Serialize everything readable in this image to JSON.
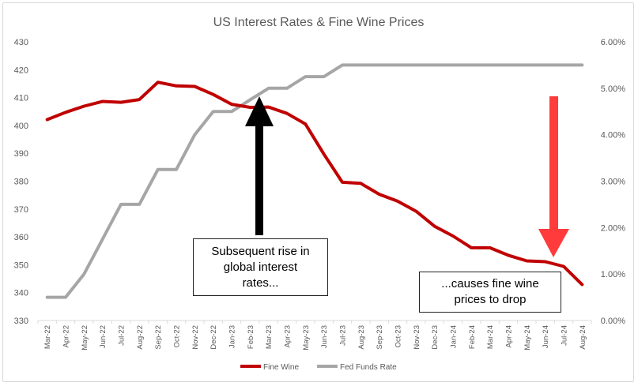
{
  "chart_data": {
    "type": "line",
    "title": "US Interest Rates & Fine Wine Prices",
    "categories": [
      "Mar-22",
      "Apr-22",
      "May-22",
      "Jun-22",
      "Jul-22",
      "Aug-22",
      "Sep-22",
      "Oct-22",
      "Nov-22",
      "Dec-22",
      "Jan-23",
      "Feb-23",
      "Mar-23",
      "Apr-23",
      "May-23",
      "Jun-23",
      "Jul-23",
      "Aug-23",
      "Sep-23",
      "Oct-23",
      "Nov-23",
      "Dec-23",
      "Jan-24",
      "Feb-24",
      "Mar-24",
      "Apr-24",
      "May-24",
      "Jun-24",
      "Jul-24",
      "Aug-24"
    ],
    "y_left": {
      "min": 330,
      "max": 430,
      "step": 10,
      "ticks": [
        "330",
        "340",
        "350",
        "360",
        "370",
        "380",
        "390",
        "400",
        "410",
        "420",
        "430"
      ]
    },
    "y_right": {
      "min": 0,
      "max": 0.06,
      "step": 0.01,
      "ticks": [
        "0.00%",
        "1.00%",
        "2.00%",
        "3.00%",
        "4.00%",
        "5.00%",
        "6.00%"
      ]
    },
    "series": [
      {
        "name": "Fine Wine",
        "axis": "left",
        "color": "#c00000",
        "values": [
          402.1,
          404.7,
          406.9,
          408.6,
          408.3,
          409.3,
          415.5,
          414.2,
          414.0,
          411.1,
          407.6,
          406.5,
          406.6,
          404.3,
          400.5,
          389.7,
          379.6,
          379.2,
          375.3,
          372.8,
          369.2,
          363.8,
          360.3,
          356.1,
          356.1,
          353.4,
          351.4,
          351.1,
          349.4,
          342.9
        ]
      },
      {
        "name": "Fed Funds Rate",
        "axis": "right",
        "color": "#a6a6a6",
        "values": [
          0.005,
          0.005,
          0.01,
          0.0175,
          0.025,
          0.025,
          0.0325,
          0.0325,
          0.04,
          0.045,
          0.045,
          0.0475,
          0.05,
          0.05,
          0.0525,
          0.0525,
          0.055,
          0.055,
          0.055,
          0.055,
          0.055,
          0.055,
          0.055,
          0.055,
          0.055,
          0.055,
          0.055,
          0.055,
          0.055,
          0.055
        ]
      }
    ],
    "legend_position": "bottom",
    "grid": false,
    "annotations": [
      {
        "text": "Subsequent rise in\nglobal interest\nrates...",
        "arrow": "up",
        "arrow_color": "#000000"
      },
      {
        "text": "...causes fine wine\nprices to drop",
        "arrow": "down",
        "arrow_color": "#ff3b3b"
      }
    ]
  }
}
